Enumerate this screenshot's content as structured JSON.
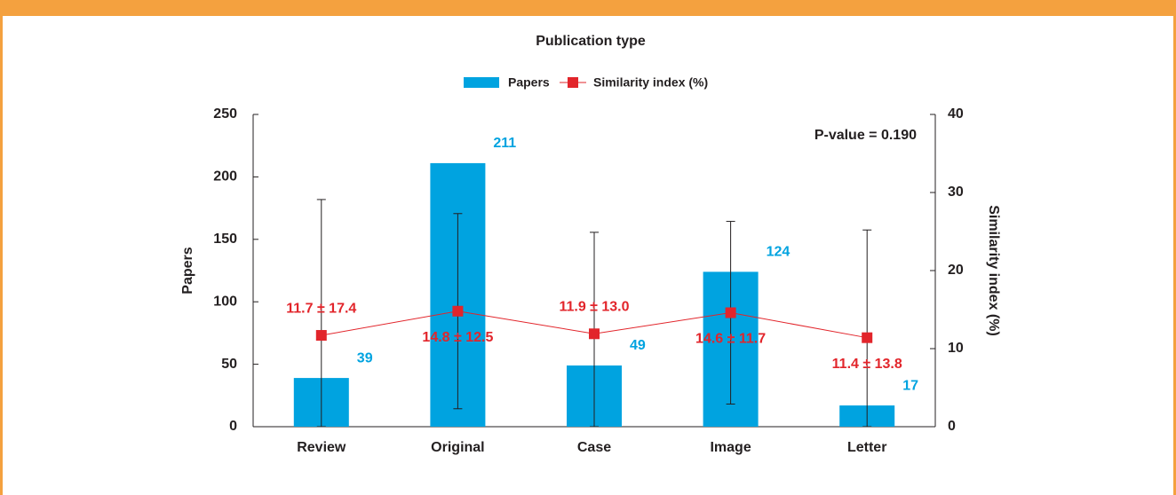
{
  "chart_data": {
    "type": "bar-line",
    "title": "Publication type",
    "categories": [
      "Review",
      "Original",
      "Case",
      "Image",
      "Letter"
    ],
    "series": [
      {
        "name": "Papers",
        "color": "#00a3e0",
        "values": [
          39,
          211,
          49,
          124,
          17
        ]
      },
      {
        "name": "Similarity index (%)",
        "color": "#e2252b",
        "axis": "y2",
        "values": [
          11.7,
          14.8,
          11.9,
          14.6,
          11.4
        ],
        "errors": [
          17.4,
          12.5,
          13.0,
          11.7,
          13.8
        ],
        "value_labels": [
          "11.7 ± 17.4",
          "14.8 ± 12.5",
          "11.9 ± 13.0",
          "14.6 ± 11.7",
          "11.4 ± 13.8"
        ]
      }
    ],
    "ylabel": "Papers",
    "y2label": "Similarity index (%)",
    "ylim": [
      0,
      250
    ],
    "yticks": [
      0,
      50,
      100,
      150,
      200,
      250
    ],
    "y2lim": [
      0,
      40
    ],
    "y2ticks": [
      0,
      10,
      20,
      30,
      40
    ],
    "annotation": "P-value = 0.190",
    "legend": "top"
  }
}
